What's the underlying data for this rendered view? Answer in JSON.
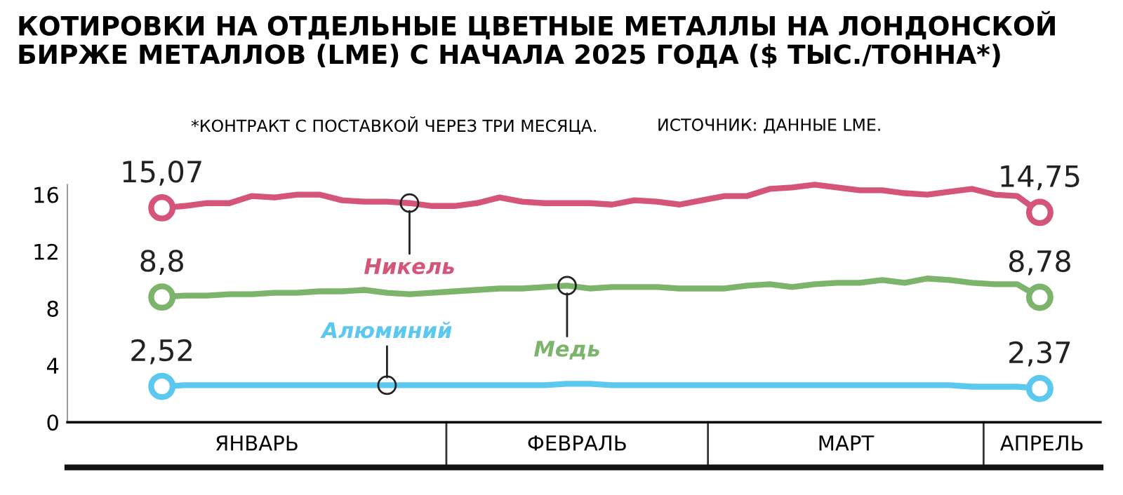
{
  "chart_data": {
    "type": "line",
    "title": "КОТИРОВКИ НА ОТДЕЛЬНЫЕ ЦВЕТНЫЕ МЕТАЛЛЫ НА ЛОНДОНСКОЙ\nБИРЖЕ МЕТАЛЛОВ (LME) С НАЧАЛА 2025 ГОДА ($ ТЫС./ТОННА*)",
    "subtitle": "*КОНТРАКТ С ПОСТАВКОЙ ЧЕРЕЗ ТРИ МЕСЯЦА.",
    "annotations": [
      "ИСТОЧНИК: ДАННЫЕ LME.",
      "ЯНВАРЬ",
      "ФЕВРАЛЬ",
      "МАРТ",
      "АПРЕЛЬ"
    ],
    "categories": [
      null,
      null,
      null,
      null,
      null,
      null,
      null,
      null,
      null,
      null,
      null,
      null,
      null,
      null,
      null,
      null,
      null,
      null,
      null,
      null,
      null,
      null,
      null,
      null,
      null,
      null,
      null,
      null,
      null,
      null,
      null,
      null,
      null,
      null,
      null,
      null,
      null,
      null,
      null,
      null
    ],
    "series": [
      {
        "name": "Никель",
        "color": "#d4547a",
        "values": [
          15.07,
          15.2,
          15.4,
          15.4,
          15.9,
          15.8,
          16.0,
          16.0,
          15.6,
          15.5,
          15.5,
          15.4,
          15.2,
          15.2,
          15.4,
          15.8,
          15.5,
          15.4,
          15.4,
          15.4,
          15.3,
          15.6,
          15.5,
          15.3,
          15.6,
          15.9,
          15.9,
          16.4,
          16.5,
          16.7,
          16.5,
          16.3,
          16.3,
          16.1,
          16.0,
          16.2,
          16.4,
          16.0,
          15.9,
          14.75
        ],
        "value_labels": [
          "15,07",
          null,
          null,
          null,
          null,
          null,
          null,
          null,
          null,
          null,
          null,
          null,
          null,
          null,
          null,
          null,
          null,
          null,
          null,
          null,
          null,
          null,
          null,
          null,
          null,
          null,
          null,
          null,
          null,
          null,
          null,
          null,
          null,
          null,
          null,
          null,
          null,
          null,
          null,
          "14,75"
        ]
      },
      {
        "name": "Медь",
        "color": "#7cb46c",
        "values": [
          8.8,
          8.9,
          8.9,
          9.0,
          9.0,
          9.1,
          9.1,
          9.2,
          9.2,
          9.3,
          9.1,
          9.0,
          9.1,
          9.2,
          9.3,
          9.4,
          9.4,
          9.5,
          9.6,
          9.4,
          9.5,
          9.5,
          9.5,
          9.4,
          9.4,
          9.4,
          9.6,
          9.7,
          9.5,
          9.7,
          9.8,
          9.8,
          10.0,
          9.8,
          10.1,
          10.0,
          9.8,
          9.7,
          9.7,
          8.78
        ],
        "value_labels": [
          "8,8",
          null,
          null,
          null,
          null,
          null,
          null,
          null,
          null,
          null,
          null,
          null,
          null,
          null,
          null,
          null,
          null,
          null,
          null,
          null,
          null,
          null,
          null,
          null,
          null,
          null,
          null,
          null,
          null,
          null,
          null,
          null,
          null,
          null,
          null,
          null,
          null,
          null,
          null,
          "8,78"
        ]
      },
      {
        "name": "Алюминий",
        "color": "#5bc8f0",
        "values": [
          2.52,
          2.6,
          2.6,
          2.6,
          2.6,
          2.6,
          2.6,
          2.6,
          2.6,
          2.6,
          2.6,
          2.6,
          2.6,
          2.6,
          2.6,
          2.6,
          2.6,
          2.6,
          2.7,
          2.7,
          2.6,
          2.6,
          2.6,
          2.6,
          2.6,
          2.6,
          2.6,
          2.6,
          2.6,
          2.6,
          2.6,
          2.6,
          2.6,
          2.6,
          2.6,
          2.6,
          2.5,
          2.5,
          2.5,
          2.37
        ],
        "value_labels": [
          "2,52",
          null,
          null,
          null,
          null,
          null,
          null,
          null,
          null,
          null,
          null,
          null,
          null,
          null,
          null,
          null,
          null,
          null,
          null,
          null,
          null,
          null,
          null,
          null,
          null,
          null,
          null,
          null,
          null,
          null,
          null,
          null,
          null,
          null,
          null,
          null,
          null,
          null,
          null,
          "2,37"
        ]
      }
    ],
    "ylim": [
      0,
      16.7
    ],
    "yticks": [
      0,
      4,
      8,
      12,
      16
    ],
    "grid": false,
    "legend": "center left",
    "line_style": "solid"
  }
}
